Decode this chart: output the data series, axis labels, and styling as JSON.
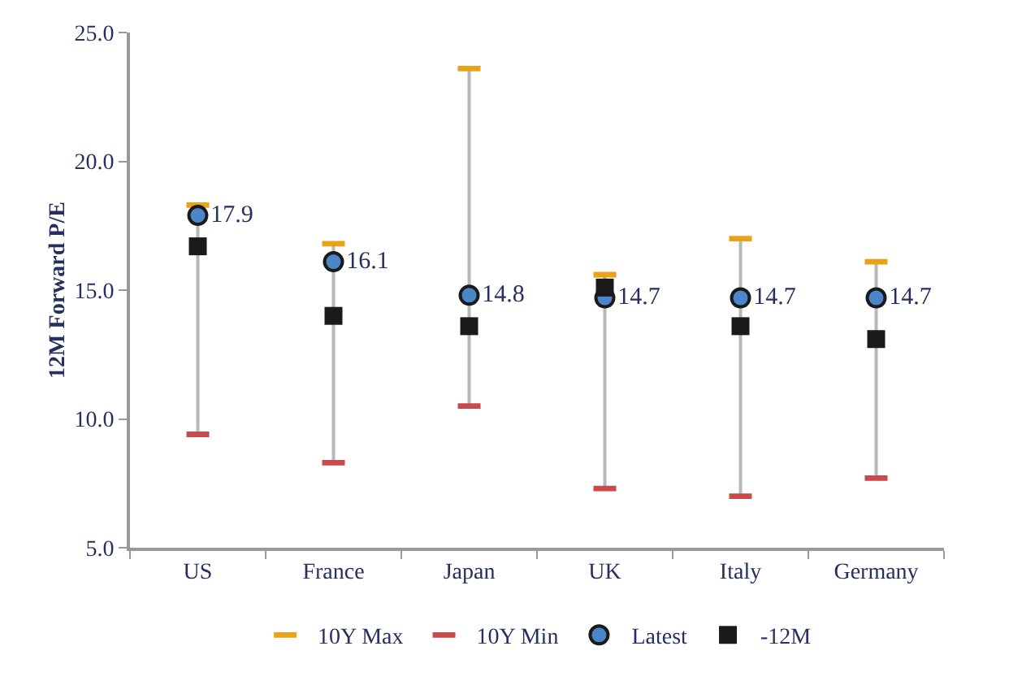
{
  "chart_data": {
    "type": "scatter",
    "ylabel": "12M Forward P/E",
    "categories": [
      "US",
      "France",
      "Japan",
      "UK",
      "Italy",
      "Germany"
    ],
    "series": [
      {
        "name": "10Y Max",
        "color": "#e8a317",
        "values": [
          18.3,
          16.8,
          23.6,
          15.6,
          17.0,
          16.1
        ]
      },
      {
        "name": "10Y Min",
        "color": "#c94a4a",
        "values": [
          9.4,
          8.3,
          10.5,
          7.3,
          7.0,
          7.7
        ]
      },
      {
        "name": "Latest",
        "color": "#4a86c8",
        "marker": "circle",
        "values": [
          17.9,
          16.1,
          14.8,
          14.7,
          14.7,
          14.7
        ],
        "value_labels": [
          "17.9",
          "16.1",
          "14.8",
          "14.7",
          "14.7",
          "14.7"
        ]
      },
      {
        "name": "-12M",
        "color": "#1a1a1a",
        "marker": "square",
        "values": [
          16.7,
          14.0,
          13.6,
          15.1,
          13.6,
          13.1
        ]
      }
    ],
    "ylim": [
      5,
      25
    ],
    "yticks": [
      {
        "value": 5,
        "label": "5.0"
      },
      {
        "value": 10,
        "label": "10.0"
      },
      {
        "value": 15,
        "label": "15.0"
      },
      {
        "value": 20,
        "label": "20.0"
      },
      {
        "value": 25,
        "label": "25.0"
      }
    ],
    "grid": false,
    "legend": "bottom"
  }
}
